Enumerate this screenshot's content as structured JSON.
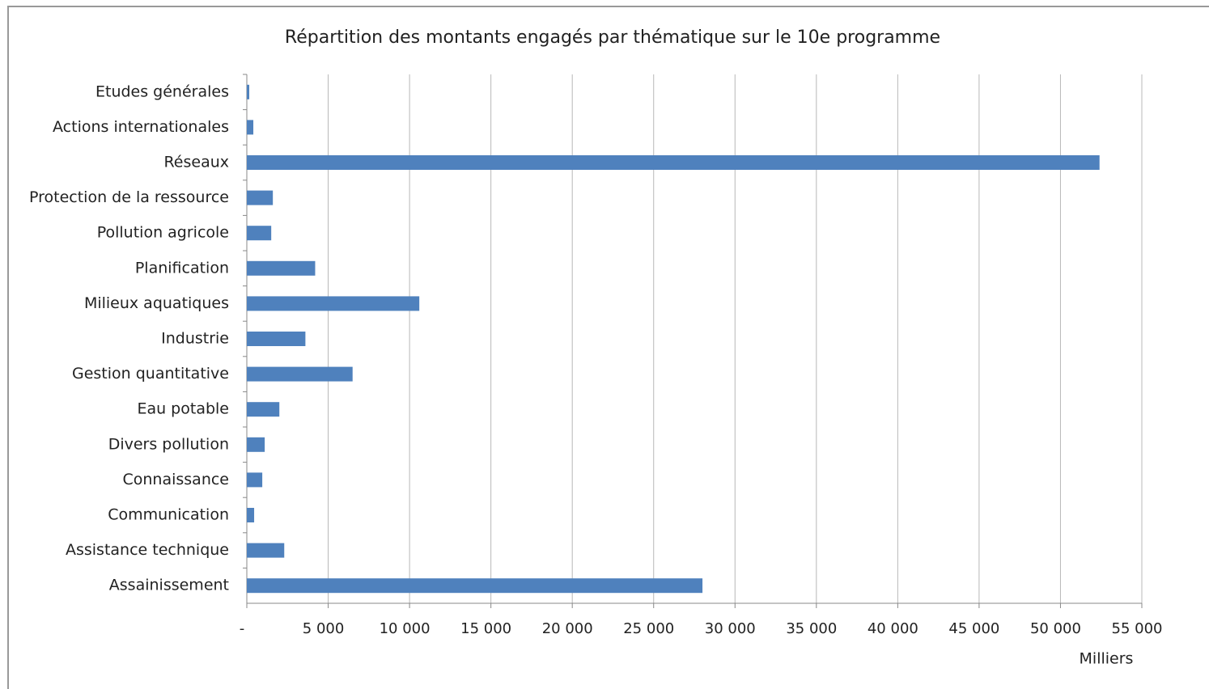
{
  "chart_data": {
    "type": "barh",
    "title": "Répartition des montants engagés par thématique sur le 10e programme",
    "categories": [
      "Etudes générales",
      "Actions internationales",
      "Réseaux",
      "Protection de la ressource",
      "Pollution agricole",
      "Planification",
      "Milieux aquatiques",
      "Industrie",
      "Gestion quantitative",
      "Eau potable",
      "Divers pollution",
      "Connaissance",
      "Communication",
      "Assistance technique",
      "Assainissement"
    ],
    "values": [
      150,
      400,
      52400,
      1600,
      1500,
      4200,
      10600,
      3600,
      6500,
      2000,
      1100,
      950,
      450,
      2300,
      28000
    ],
    "color": "#4f81bd",
    "xlabel": "Milliers",
    "xlim": [
      0,
      55000
    ],
    "xticks": [
      {
        "value": 0,
        "label": "-"
      },
      {
        "value": 5000,
        "label": "5 000"
      },
      {
        "value": 10000,
        "label": "10 000"
      },
      {
        "value": 15000,
        "label": "15 000"
      },
      {
        "value": 20000,
        "label": "20 000"
      },
      {
        "value": 25000,
        "label": "25 000"
      },
      {
        "value": 30000,
        "label": "30 000"
      },
      {
        "value": 35000,
        "label": "35 000"
      },
      {
        "value": 40000,
        "label": "40 000"
      },
      {
        "value": 45000,
        "label": "45 000"
      },
      {
        "value": 50000,
        "label": "50 000"
      },
      {
        "value": 55000,
        "label": "55 000"
      }
    ],
    "grid": true
  }
}
